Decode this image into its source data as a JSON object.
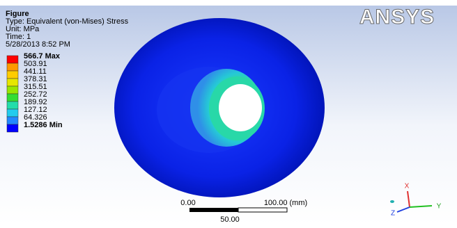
{
  "header": {
    "title": "Figure",
    "type": "Type: Equivalent (von-Mises) Stress",
    "unit": "Unit: MPa",
    "time": "Time: 1",
    "date": "5/28/2013 8:52 PM"
  },
  "logo": "ANSYS",
  "legend": {
    "labels": [
      "566.7 Max",
      "503.91",
      "441.11",
      "378.31",
      "315.51",
      "252.72",
      "189.92",
      "127.12",
      "64.326",
      "1.5286 Min"
    ]
  },
  "scale": {
    "left": "0.00",
    "right": "100.00 (mm)",
    "middle": "50.00"
  },
  "triad": {
    "x": "X",
    "y": "Y",
    "z": "Z"
  }
}
